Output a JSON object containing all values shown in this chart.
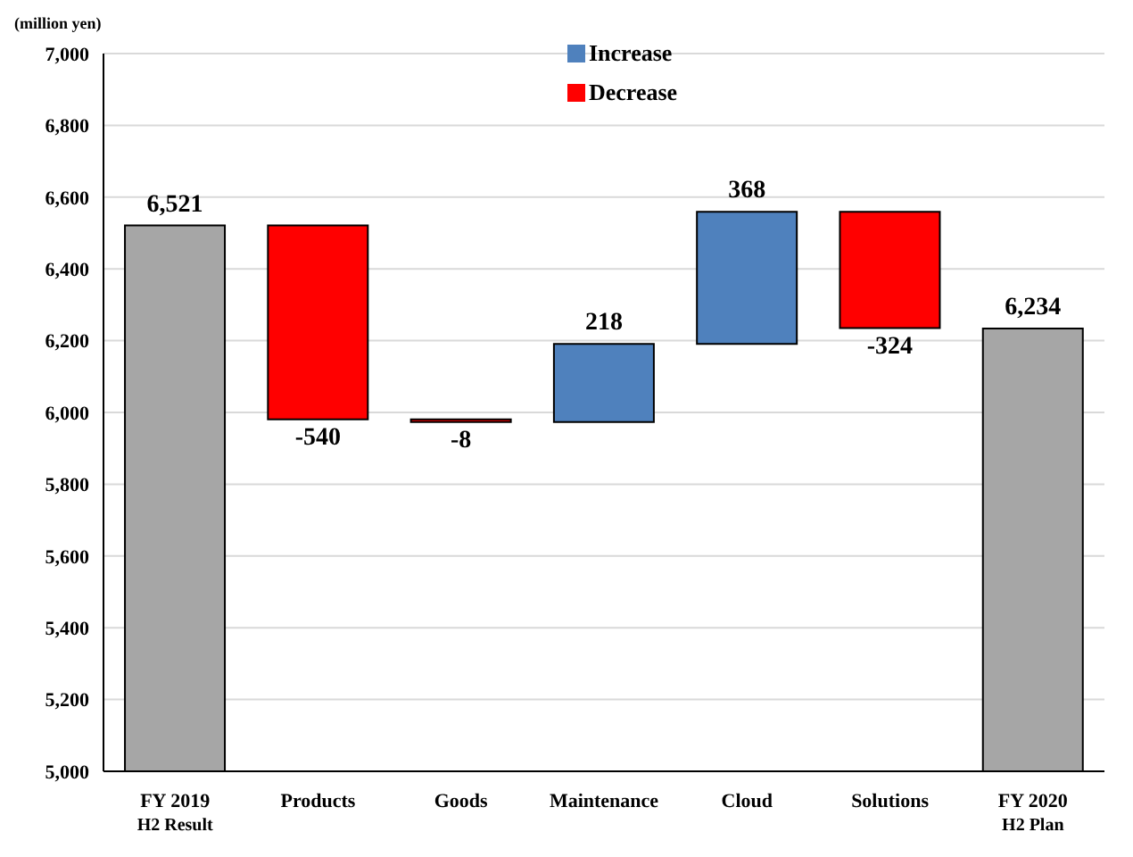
{
  "chart_data": {
    "type": "bar",
    "ylabel": "(million yen)",
    "categories": [
      "FY 2019\nH2 Result",
      "Products",
      "Goods",
      "Maintenance",
      "Cloud",
      "Solutions",
      "FY 2020\nH2 Plan"
    ],
    "series": [
      {
        "color": "#a6a6a6",
        "values": [
          6521,
          null,
          null,
          null,
          null,
          null,
          6234
        ]
      },
      {
        "name": "Increase",
        "color": "#4f81bd",
        "values": [
          null,
          null,
          null,
          218,
          368,
          null,
          null
        ],
        "base": [
          null,
          null,
          null,
          5973,
          6191,
          null,
          null
        ]
      },
      {
        "name": "Decrease",
        "color": "#ff0000",
        "values": [
          null,
          -540,
          -8,
          null,
          null,
          -324,
          null
        ],
        "base": [
          null,
          6521,
          5981,
          null,
          null,
          6559,
          null
        ]
      }
    ],
    "value_labels": [
      "6,521",
      "-540",
      "-8",
      "218",
      "368",
      "-324",
      "6,234"
    ],
    "ylim": [
      5000,
      7000
    ],
    "yticks": [
      {
        "value": 5000,
        "label": "5,000"
      },
      {
        "value": 5200,
        "label": "5,200"
      },
      {
        "value": 5400,
        "label": "5,400"
      },
      {
        "value": 5600,
        "label": "5,600"
      },
      {
        "value": 5800,
        "label": "5,800"
      },
      {
        "value": 6000,
        "label": "6,000"
      },
      {
        "value": 6200,
        "label": "6,200"
      },
      {
        "value": 6400,
        "label": "6,400"
      },
      {
        "value": 6600,
        "label": "6,600"
      },
      {
        "value": 6800,
        "label": "6,800"
      },
      {
        "value": 7000,
        "label": "7,000"
      }
    ],
    "grid": "y",
    "legend": "top"
  }
}
